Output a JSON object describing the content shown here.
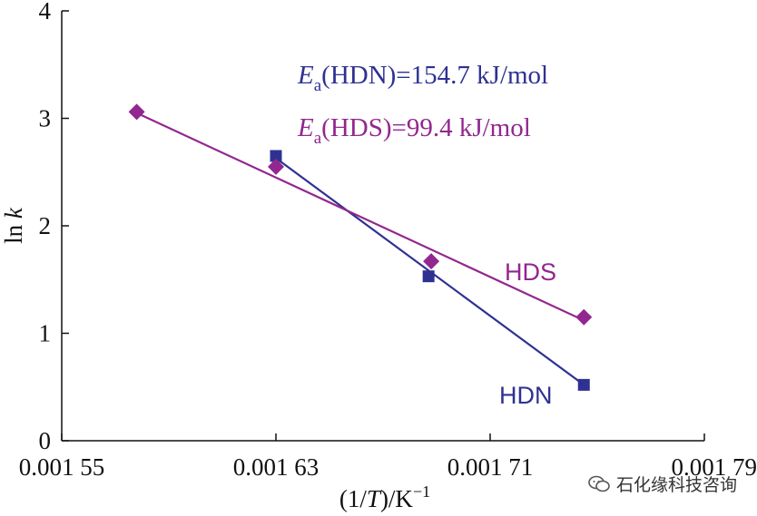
{
  "chart_data": {
    "type": "scatter",
    "xlabel": "(1/T)/K−1",
    "ylabel": "ln k",
    "xlim": [
      0.00155,
      0.00179
    ],
    "ylim": [
      0,
      4
    ],
    "x_ticks": [
      0.00155,
      0.00163,
      0.00171,
      0.00179
    ],
    "x_tick_labels": [
      "0.001 55",
      "0.001 63",
      "0.001 71",
      "0.001 79"
    ],
    "y_ticks": [
      0,
      1,
      2,
      3,
      4
    ],
    "y_tick_labels": [
      "0",
      "1",
      "2",
      "3",
      "4"
    ],
    "grid": false,
    "series": [
      {
        "name": "HDN",
        "marker": "square",
        "color": "#2e3192",
        "x": [
          0.00163,
          0.001687,
          0.001745
        ],
        "y": [
          2.65,
          1.53,
          0.52
        ],
        "fit_line": {
          "x": [
            0.00163,
            0.001745
          ],
          "y": [
            2.63,
            0.52
          ]
        }
      },
      {
        "name": "HDS",
        "marker": "diamond",
        "color": "#92278f",
        "x": [
          0.001578,
          0.00163,
          0.001688,
          0.001745
        ],
        "y": [
          3.06,
          2.55,
          1.67,
          1.15
        ],
        "fit_line": {
          "x": [
            0.001578,
            0.001745
          ],
          "y": [
            3.05,
            1.12
          ]
        }
      }
    ],
    "annotations": [
      {
        "text_main": "E",
        "text_sub": "a",
        "text_rest": "(HDN)=154.7 kJ/mol",
        "color": "#2e3192"
      },
      {
        "text_main": "E",
        "text_sub": "a",
        "text_rest": "(HDS)=99.4 kJ/mol",
        "color": "#92278f"
      }
    ]
  },
  "watermark": {
    "text": "石化缘科技咨询",
    "icon": "wechat-icon"
  }
}
